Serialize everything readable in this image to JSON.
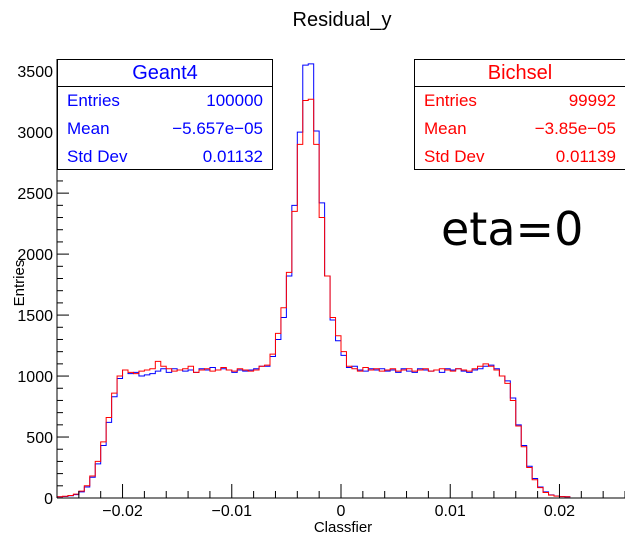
{
  "chart_data": {
    "type": "histogram",
    "title": "Residual_y",
    "xlabel": "Classfier",
    "ylabel": "Entries",
    "xlim": [
      -0.026,
      0.026
    ],
    "ylim": [
      0,
      3600
    ],
    "xticks": [
      -0.02,
      -0.01,
      0,
      0.01,
      0.02
    ],
    "xtick_labels": [
      "−0.02",
      "−0.01",
      "0",
      "0.01",
      "0.02"
    ],
    "yticks": [
      0,
      500,
      1000,
      1500,
      2000,
      2500,
      3000,
      3500
    ],
    "ytick_labels": [
      "0",
      "500",
      "1000",
      "1500",
      "2000",
      "2500",
      "3000",
      "3500"
    ],
    "bin_width": 0.0005,
    "bin_start": -0.026,
    "series": [
      {
        "name": "Geant4",
        "color": "#0000ff",
        "values": [
          10,
          12,
          18,
          28,
          50,
          90,
          170,
          280,
          430,
          620,
          830,
          980,
          1050,
          1020,
          1030,
          1000,
          1010,
          1020,
          1040,
          1060,
          1030,
          1060,
          1050,
          1040,
          1050,
          1030,
          1060,
          1050,
          1070,
          1050,
          1060,
          1050,
          1030,
          1050,
          1040,
          1050,
          1060,
          1080,
          1080,
          1160,
          1300,
          1480,
          1820,
          2400,
          3000,
          3550,
          3560,
          3010,
          2420,
          1820,
          1460,
          1290,
          1170,
          1070,
          1080,
          1050,
          1040,
          1060,
          1050,
          1060,
          1040,
          1050,
          1030,
          1060,
          1040,
          1030,
          1060,
          1050,
          1040,
          1050,
          1030,
          1060,
          1050,
          1060,
          1040,
          1030,
          1050,
          1060,
          1080,
          1090,
          1060,
          1000,
          960,
          820,
          600,
          430,
          260,
          160,
          90,
          50,
          26,
          16,
          12,
          10
        ],
        "stats": {
          "header": "Geant4",
          "entries_label": "Entries",
          "entries": "100000",
          "mean_label": "Mean",
          "mean": "−5.657e−05",
          "std_label": "Std Dev",
          "std": "0.01132"
        }
      },
      {
        "name": "Bichsel",
        "color": "#ff0000",
        "values": [
          10,
          14,
          20,
          32,
          56,
          100,
          180,
          300,
          460,
          660,
          860,
          1000,
          1050,
          1030,
          1020,
          1040,
          1050,
          1060,
          1120,
          1080,
          1060,
          1040,
          1050,
          1060,
          1080,
          1030,
          1050,
          1060,
          1040,
          1050,
          1070,
          1050,
          1040,
          1060,
          1050,
          1040,
          1050,
          1080,
          1090,
          1180,
          1350,
          1560,
          1850,
          2350,
          2900,
          3260,
          3270,
          2900,
          2300,
          1820,
          1480,
          1330,
          1200,
          1080,
          1060,
          1040,
          1070,
          1050,
          1060,
          1040,
          1050,
          1060,
          1040,
          1050,
          1060,
          1040,
          1050,
          1060,
          1040,
          1050,
          1060,
          1050,
          1040,
          1060,
          1050,
          1040,
          1060,
          1080,
          1100,
          1080,
          1050,
          1000,
          940,
          800,
          590,
          420,
          250,
          150,
          85,
          45,
          24,
          15,
          11,
          10
        ],
        "stats": {
          "header": "Bichsel",
          "entries_label": "Entries",
          "entries": "99992",
          "mean_label": "Mean",
          "mean": "−3.85e−05",
          "std_label": "Std Dev",
          "std": "0.01139"
        }
      }
    ],
    "annotation": "eta=0",
    "grid": false
  }
}
